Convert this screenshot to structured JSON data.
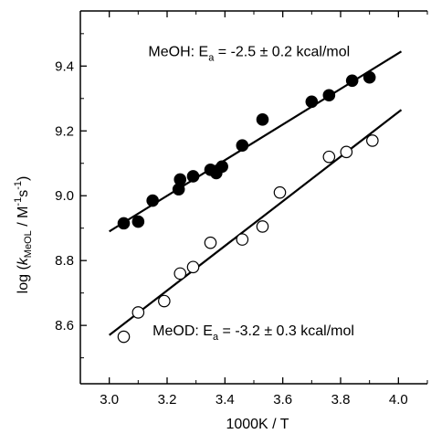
{
  "chart_data": {
    "type": "scatter",
    "title": "",
    "xlabel": "1000K / T",
    "ylabel": {
      "prefix": "log (",
      "k": "k",
      "k_sub": "MeOL",
      "unit_sep": " / M",
      "m_sup": "-1",
      "s": "s",
      "s_sup": "-1",
      "suffix": ")"
    },
    "xlim": [
      2.9,
      4.1
    ],
    "ylim": [
      8.42,
      9.57
    ],
    "x_ticks": [
      3.0,
      3.2,
      3.4,
      3.6,
      3.8,
      4.0
    ],
    "x_tick_labels": [
      "3.0",
      "3.2",
      "3.4",
      "3.6",
      "3.8",
      "4.0"
    ],
    "y_ticks": [
      8.6,
      8.8,
      9.0,
      9.2,
      9.4
    ],
    "y_tick_labels": [
      "8.6",
      "8.8",
      "9.0",
      "9.2",
      "9.4"
    ],
    "grid": false,
    "legend": "none",
    "series": [
      {
        "marker": "filled-circle",
        "color": "#000000",
        "points": [
          [
            3.05,
            8.915
          ],
          [
            3.1,
            8.92
          ],
          [
            3.15,
            8.985
          ],
          [
            3.24,
            9.02
          ],
          [
            3.245,
            9.05
          ],
          [
            3.29,
            9.06
          ],
          [
            3.35,
            9.08
          ],
          [
            3.37,
            9.07
          ],
          [
            3.39,
            9.09
          ],
          [
            3.46,
            9.155
          ],
          [
            3.53,
            9.235
          ],
          [
            3.7,
            9.29
          ],
          [
            3.76,
            9.31
          ],
          [
            3.84,
            9.355
          ],
          [
            3.9,
            9.365
          ]
        ],
        "fit": [
          [
            3.0,
            8.89
          ],
          [
            4.01,
            9.445
          ]
        ]
      },
      {
        "marker": "open-circle",
        "color": "#000000",
        "points": [
          [
            3.05,
            8.565
          ],
          [
            3.1,
            8.64
          ],
          [
            3.19,
            8.675
          ],
          [
            3.245,
            8.76
          ],
          [
            3.29,
            8.78
          ],
          [
            3.35,
            8.855
          ],
          [
            3.46,
            8.865
          ],
          [
            3.53,
            8.905
          ],
          [
            3.59,
            9.01
          ],
          [
            3.76,
            9.12
          ],
          [
            3.82,
            9.135
          ],
          [
            3.91,
            9.17
          ]
        ],
        "fit": [
          [
            3.0,
            8.57
          ],
          [
            4.01,
            9.265
          ]
        ]
      }
    ],
    "annotations": [
      {
        "id": "meoh",
        "x": 3.135,
        "y": 9.43,
        "label": "MeOH:  E",
        "sub": "a",
        "rest": " = -2.5 ± 0.2 kcal/mol"
      },
      {
        "id": "meod",
        "x": 3.15,
        "y": 8.57,
        "label": "MeOD:  E",
        "sub": "a",
        "rest": " = -3.2 ± 0.3 kcal/mol"
      }
    ]
  }
}
